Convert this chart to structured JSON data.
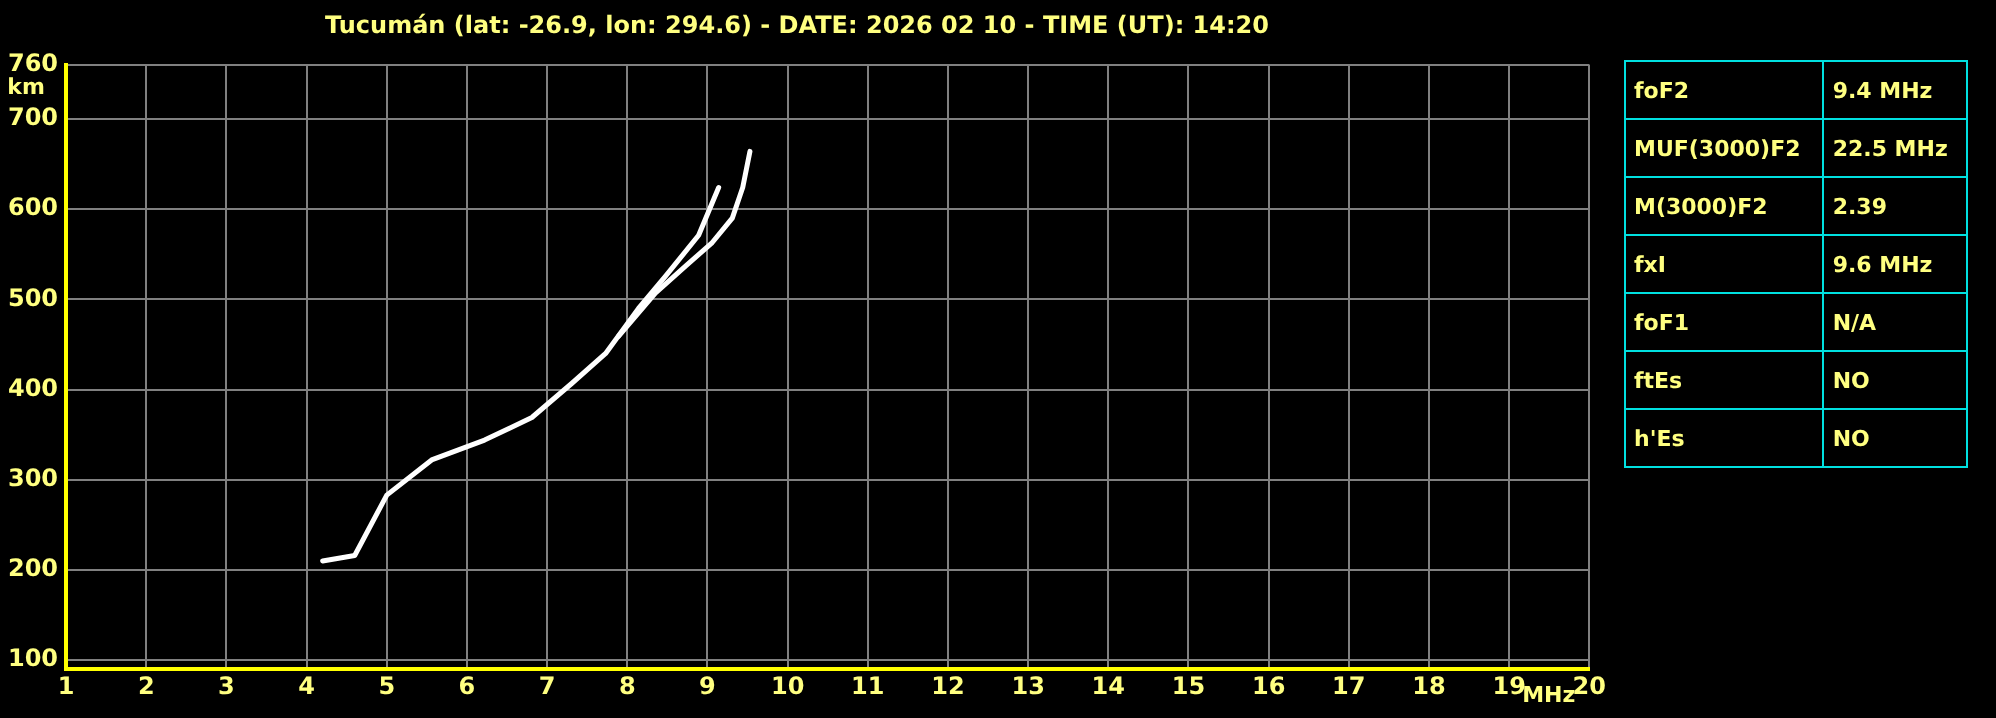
{
  "chart_data": [
    {
      "type": "line",
      "title": "Tucumán (lat: -26.9, lon: 294.6) - DATE: 2026 02 10 - TIME (UT): 14:20",
      "xlabel": "MHz",
      "ylabel": "km",
      "series": [
        {
          "color": "#ffffff",
          "x": [
            4.2,
            4.6,
            5.0,
            5.56,
            6.22,
            6.81,
            7.31,
            7.73,
            8.14,
            8.48,
            8.89,
            9.14
          ],
          "values": [
            210,
            216,
            283,
            322,
            344,
            369,
            407,
            440,
            490,
            526,
            571,
            624
          ]
        },
        {
          "color": "#ffffff",
          "x": [
            7.89,
            8.35,
            8.73,
            9.06,
            9.31,
            9.44,
            9.53
          ],
          "values": [
            459,
            507,
            537,
            563,
            590,
            624,
            664
          ]
        }
      ],
      "xlim": [
        1,
        20
      ],
      "xticks": [
        1,
        2,
        3,
        4,
        5,
        6,
        7,
        8,
        9,
        10,
        11,
        12,
        13,
        14,
        15,
        16,
        17,
        18,
        19,
        20
      ],
      "ylim": [
        90,
        760
      ],
      "yticks": [
        100,
        200,
        300,
        400,
        500,
        600,
        700,
        760
      ],
      "grid": true,
      "legend": false,
      "marker": "none",
      "line_style": "solid"
    },
    {
      "type": "other",
      "annotations": [
        "foF2",
        "9.4 MHz",
        "MUF(3000)F2",
        "22.5 MHz",
        "M(3000)F2",
        "2.39",
        "fxI",
        "9.6 MHz",
        "foF1",
        "N/A",
        "ftEs",
        "NO",
        "h'Es",
        "NO"
      ]
    }
  ]
}
